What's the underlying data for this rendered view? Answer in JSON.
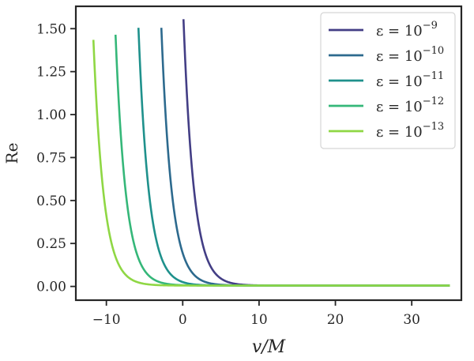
{
  "chart_data": {
    "type": "line",
    "xlabel": "v/M",
    "ylabel": "Re",
    "xlim": [
      -14,
      36.5
    ],
    "ylim": [
      -0.08,
      1.63
    ],
    "xticks": [
      -10,
      0,
      10,
      20,
      30
    ],
    "xtick_labels": [
      "−10",
      "0",
      "10",
      "20",
      "30"
    ],
    "yticks": [
      0.0,
      0.25,
      0.5,
      0.75,
      1.0,
      1.25,
      1.5
    ],
    "ytick_labels": [
      "0.00",
      "0.25",
      "0.50",
      "0.75",
      "1.00",
      "1.25",
      "1.50"
    ],
    "grid": false,
    "legend_position": "top-right",
    "series": [
      {
        "name": "ε = 10⁻⁹",
        "legend_base": "ε = 10",
        "legend_exp": "−9",
        "color": "#433e85",
        "x_start": 0.1,
        "peak": 1.55,
        "decay": 1.35
      },
      {
        "name": "ε = 10⁻¹⁰",
        "legend_base": "ε = 10",
        "legend_exp": "−10",
        "color": "#2d6a8e",
        "x_start": -2.8,
        "peak": 1.5,
        "decay": 1.35
      },
      {
        "name": "ε = 10⁻¹¹",
        "legend_base": "ε = 10",
        "legend_exp": "−11",
        "color": "#1f918c",
        "x_start": -5.8,
        "peak": 1.5,
        "decay": 1.35
      },
      {
        "name": "ε = 10⁻¹²",
        "legend_base": "ε = 10",
        "legend_exp": "−12",
        "color": "#35b779",
        "x_start": -8.8,
        "peak": 1.46,
        "decay": 1.35
      },
      {
        "name": "ε = 10⁻¹³",
        "legend_base": "ε = 10",
        "legend_exp": "−13",
        "color": "#8fd744",
        "x_start": -11.7,
        "peak": 1.43,
        "decay": 1.35
      }
    ],
    "x_end": 35
  }
}
